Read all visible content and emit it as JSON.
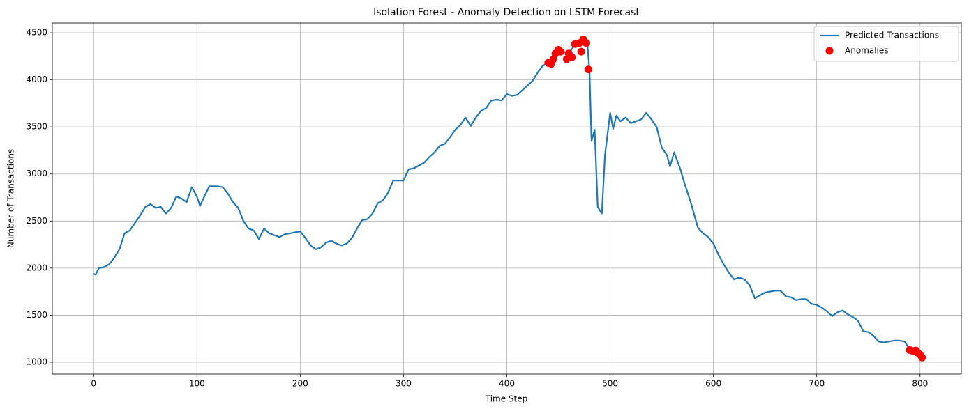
{
  "chart_data": {
    "type": "line",
    "title": "Isolation Forest - Anomaly Detection on LSTM Forecast",
    "xlabel": "Time Step",
    "ylabel": "Number of Transactions",
    "xlim": [
      -40,
      840
    ],
    "ylim": [
      874,
      4604
    ],
    "xticks": [
      0,
      100,
      200,
      300,
      400,
      500,
      600,
      700,
      800
    ],
    "yticks": [
      1000,
      1500,
      2000,
      2500,
      3000,
      3500,
      4000,
      4500
    ],
    "grid": true,
    "legend": "upper right",
    "series": [
      {
        "name": "Predicted Transactions",
        "type": "line",
        "color": "#1f77b4",
        "x": [
          0,
          2,
          5,
          10,
          15,
          20,
          25,
          30,
          35,
          40,
          45,
          50,
          55,
          60,
          65,
          70,
          75,
          80,
          85,
          90,
          95,
          100,
          103,
          108,
          112,
          120,
          125,
          130,
          135,
          140,
          145,
          150,
          155,
          160,
          165,
          170,
          175,
          180,
          185,
          190,
          195,
          200,
          205,
          210,
          215,
          220,
          225,
          230,
          235,
          240,
          245,
          250,
          255,
          260,
          265,
          270,
          275,
          280,
          285,
          290,
          295,
          300,
          305,
          310,
          315,
          320,
          325,
          330,
          335,
          340,
          345,
          350,
          355,
          360,
          365,
          370,
          375,
          380,
          385,
          390,
          395,
          400,
          405,
          410,
          415,
          420,
          425,
          430,
          435,
          440,
          445,
          450,
          455,
          460,
          465,
          470,
          474,
          478,
          480,
          482,
          485,
          488,
          492,
          495,
          500,
          503,
          506,
          510,
          515,
          520,
          525,
          530,
          535,
          540,
          545,
          550,
          555,
          558,
          562,
          568,
          572,
          578,
          585,
          590,
          595,
          600,
          605,
          610,
          615,
          620,
          625,
          630,
          635,
          640,
          645,
          650,
          655,
          660,
          665,
          670,
          675,
          680,
          685,
          690,
          695,
          700,
          705,
          710,
          715,
          720,
          725,
          730,
          735,
          740,
          745,
          750,
          755,
          760,
          765,
          770,
          775,
          780,
          785,
          790,
          795,
          800,
          803
        ],
        "values": [
          1940,
          1930,
          2000,
          2010,
          2040,
          2110,
          2200,
          2370,
          2400,
          2480,
          2560,
          2650,
          2680,
          2640,
          2650,
          2580,
          2640,
          2760,
          2740,
          2700,
          2860,
          2760,
          2660,
          2780,
          2870,
          2870,
          2860,
          2790,
          2700,
          2640,
          2500,
          2420,
          2400,
          2310,
          2420,
          2370,
          2350,
          2330,
          2360,
          2370,
          2380,
          2390,
          2320,
          2240,
          2200,
          2220,
          2270,
          2290,
          2260,
          2240,
          2260,
          2320,
          2420,
          2510,
          2520,
          2580,
          2690,
          2720,
          2800,
          2930,
          2930,
          2930,
          3050,
          3060,
          3090,
          3120,
          3180,
          3230,
          3300,
          3320,
          3390,
          3470,
          3520,
          3600,
          3510,
          3600,
          3670,
          3700,
          3780,
          3790,
          3780,
          3850,
          3830,
          3840,
          3890,
          3940,
          3990,
          4080,
          4150,
          4180,
          4260,
          4320,
          4300,
          4280,
          4360,
          4380,
          4430,
          4380,
          4100,
          3350,
          3470,
          2650,
          2580,
          3200,
          3650,
          3480,
          3620,
          3560,
          3600,
          3540,
          3560,
          3580,
          3650,
          3580,
          3500,
          3280,
          3200,
          3080,
          3230,
          3050,
          2900,
          2700,
          2430,
          2370,
          2330,
          2260,
          2140,
          2040,
          1950,
          1880,
          1900,
          1880,
          1820,
          1680,
          1710,
          1740,
          1750,
          1760,
          1760,
          1700,
          1690,
          1660,
          1670,
          1670,
          1620,
          1610,
          1580,
          1540,
          1490,
          1530,
          1550,
          1510,
          1480,
          1440,
          1330,
          1320,
          1280,
          1220,
          1210,
          1220,
          1230,
          1230,
          1220,
          1140,
          1120,
          1080,
          1050
        ]
      },
      {
        "name": "Anomalies",
        "type": "scatter",
        "color": "#ff0000",
        "x": [
          440,
          443,
          445,
          447,
          450,
          452,
          458,
          460,
          463,
          466,
          470,
          472,
          474,
          477,
          479,
          790,
          793,
          796,
          798,
          800,
          802
        ],
        "values": [
          4180,
          4170,
          4220,
          4280,
          4320,
          4300,
          4220,
          4280,
          4240,
          4380,
          4390,
          4300,
          4430,
          4390,
          4110,
          1130,
          1120,
          1125,
          1100,
          1080,
          1050
        ]
      }
    ]
  }
}
